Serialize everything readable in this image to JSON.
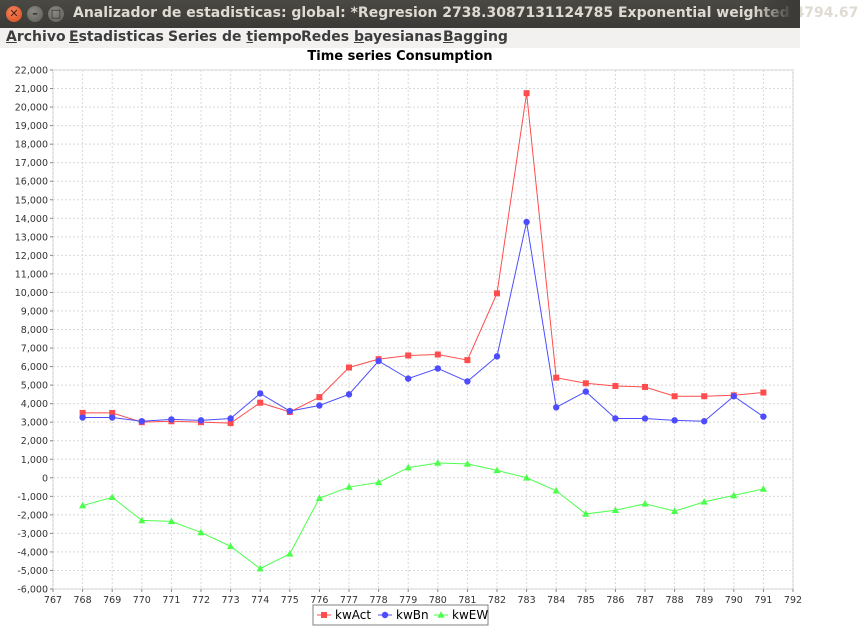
{
  "window": {
    "title": "Analizador de estadisticas: global: *Regresion 2738.3087131124785 Exponential weighted  4794.67",
    "close_glyph": "✕",
    "minimize_glyph": "–",
    "maximize_glyph": "□"
  },
  "menu": {
    "items": [
      {
        "label": "Archivo",
        "mnemonic_index": 0
      },
      {
        "label": "Estadisticas",
        "mnemonic_index": 0
      },
      {
        "label": "Series de tiempo",
        "mnemonic_index": 10
      },
      {
        "label": "Redes bayesianas",
        "mnemonic_index": 6
      },
      {
        "label": "Bagging",
        "mnemonic_index": 0
      }
    ]
  },
  "chart_data": {
    "type": "line",
    "title": "Time series Consumption",
    "xlim": [
      767,
      792
    ],
    "ylim": [
      -6000,
      22000
    ],
    "x_ticks": [
      767,
      768,
      769,
      770,
      771,
      772,
      773,
      774,
      775,
      776,
      777,
      778,
      779,
      780,
      781,
      782,
      783,
      784,
      785,
      786,
      787,
      788,
      789,
      790,
      791,
      792
    ],
    "y_ticks": [
      "-6,000",
      "-5,000",
      "-4,000",
      "-3,000",
      "-2,000",
      "-1,000",
      "0",
      "1,000",
      "2,000",
      "3,000",
      "4,000",
      "5,000",
      "6,000",
      "7,000",
      "8,000",
      "9,000",
      "10,000",
      "11,000",
      "12,000",
      "13,000",
      "14,000",
      "15,000",
      "16,000",
      "17,000",
      "18,000",
      "19,000",
      "20,000",
      "21,000",
      "22,000"
    ],
    "grid": true,
    "legend_position": "bottom",
    "x": [
      768,
      769,
      770,
      771,
      772,
      773,
      774,
      775,
      776,
      777,
      778,
      779,
      780,
      781,
      782,
      783,
      784,
      785,
      786,
      787,
      788,
      789,
      790,
      791
    ],
    "series": [
      {
        "name": "kwAct",
        "color": "#ff4d4d",
        "marker": "square",
        "values": [
          3500,
          3500,
          3000,
          3050,
          3000,
          2950,
          4050,
          3550,
          4350,
          5950,
          6400,
          6600,
          6650,
          6350,
          9950,
          20750,
          5400,
          5100,
          4950,
          4900,
          4400,
          4400,
          4450,
          4600
        ]
      },
      {
        "name": "kwBn",
        "color": "#4d4dff",
        "marker": "circle",
        "values": [
          3250,
          3250,
          3050,
          3150,
          3100,
          3200,
          4550,
          3600,
          3900,
          4500,
          6300,
          5350,
          5900,
          5200,
          6550,
          13800,
          3800,
          4650,
          3200,
          3200,
          3100,
          3050,
          4400,
          3300
        ]
      },
      {
        "name": "kwEW",
        "color": "#4dff4d",
        "marker": "triangle",
        "values": [
          -1500,
          -1050,
          -2300,
          -2350,
          -2950,
          -3700,
          -4900,
          -4100,
          -1100,
          -500,
          -250,
          550,
          800,
          750,
          400,
          0,
          -700,
          -1950,
          -1750,
          -1400,
          -1800,
          -1300,
          -950,
          -600
        ]
      }
    ]
  }
}
